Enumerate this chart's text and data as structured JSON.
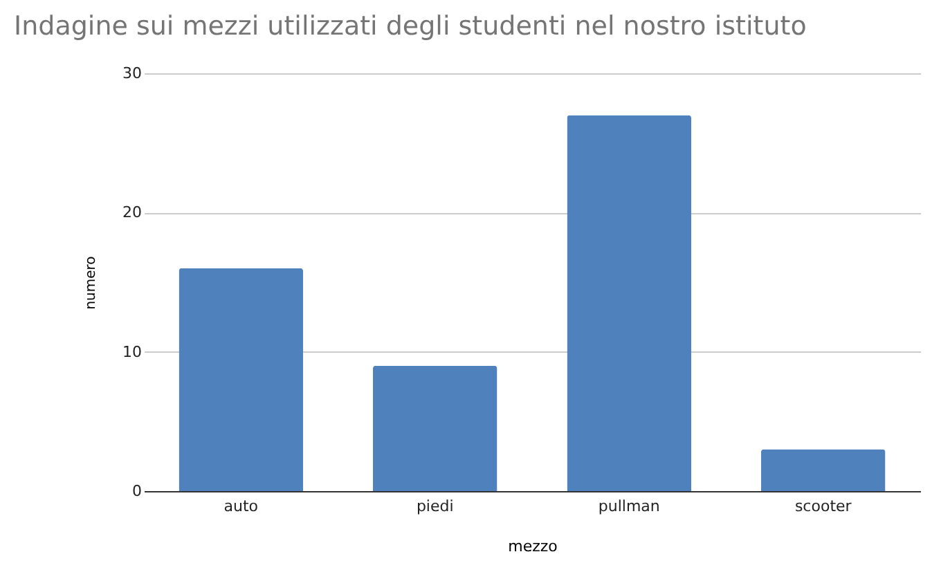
{
  "chart_data": {
    "type": "bar",
    "title": "Indagine sui mezzi utilizzati degli studenti nel nostro istituto",
    "xlabel": "mezzo",
    "ylabel": "numero",
    "categories": [
      "auto",
      "piedi",
      "pullman",
      "scooter"
    ],
    "values": [
      16,
      9,
      27,
      3
    ],
    "color": "#4f81bd",
    "ylim": [
      0,
      30
    ],
    "yticks": [
      0,
      10,
      20,
      30
    ],
    "grid": "y"
  }
}
